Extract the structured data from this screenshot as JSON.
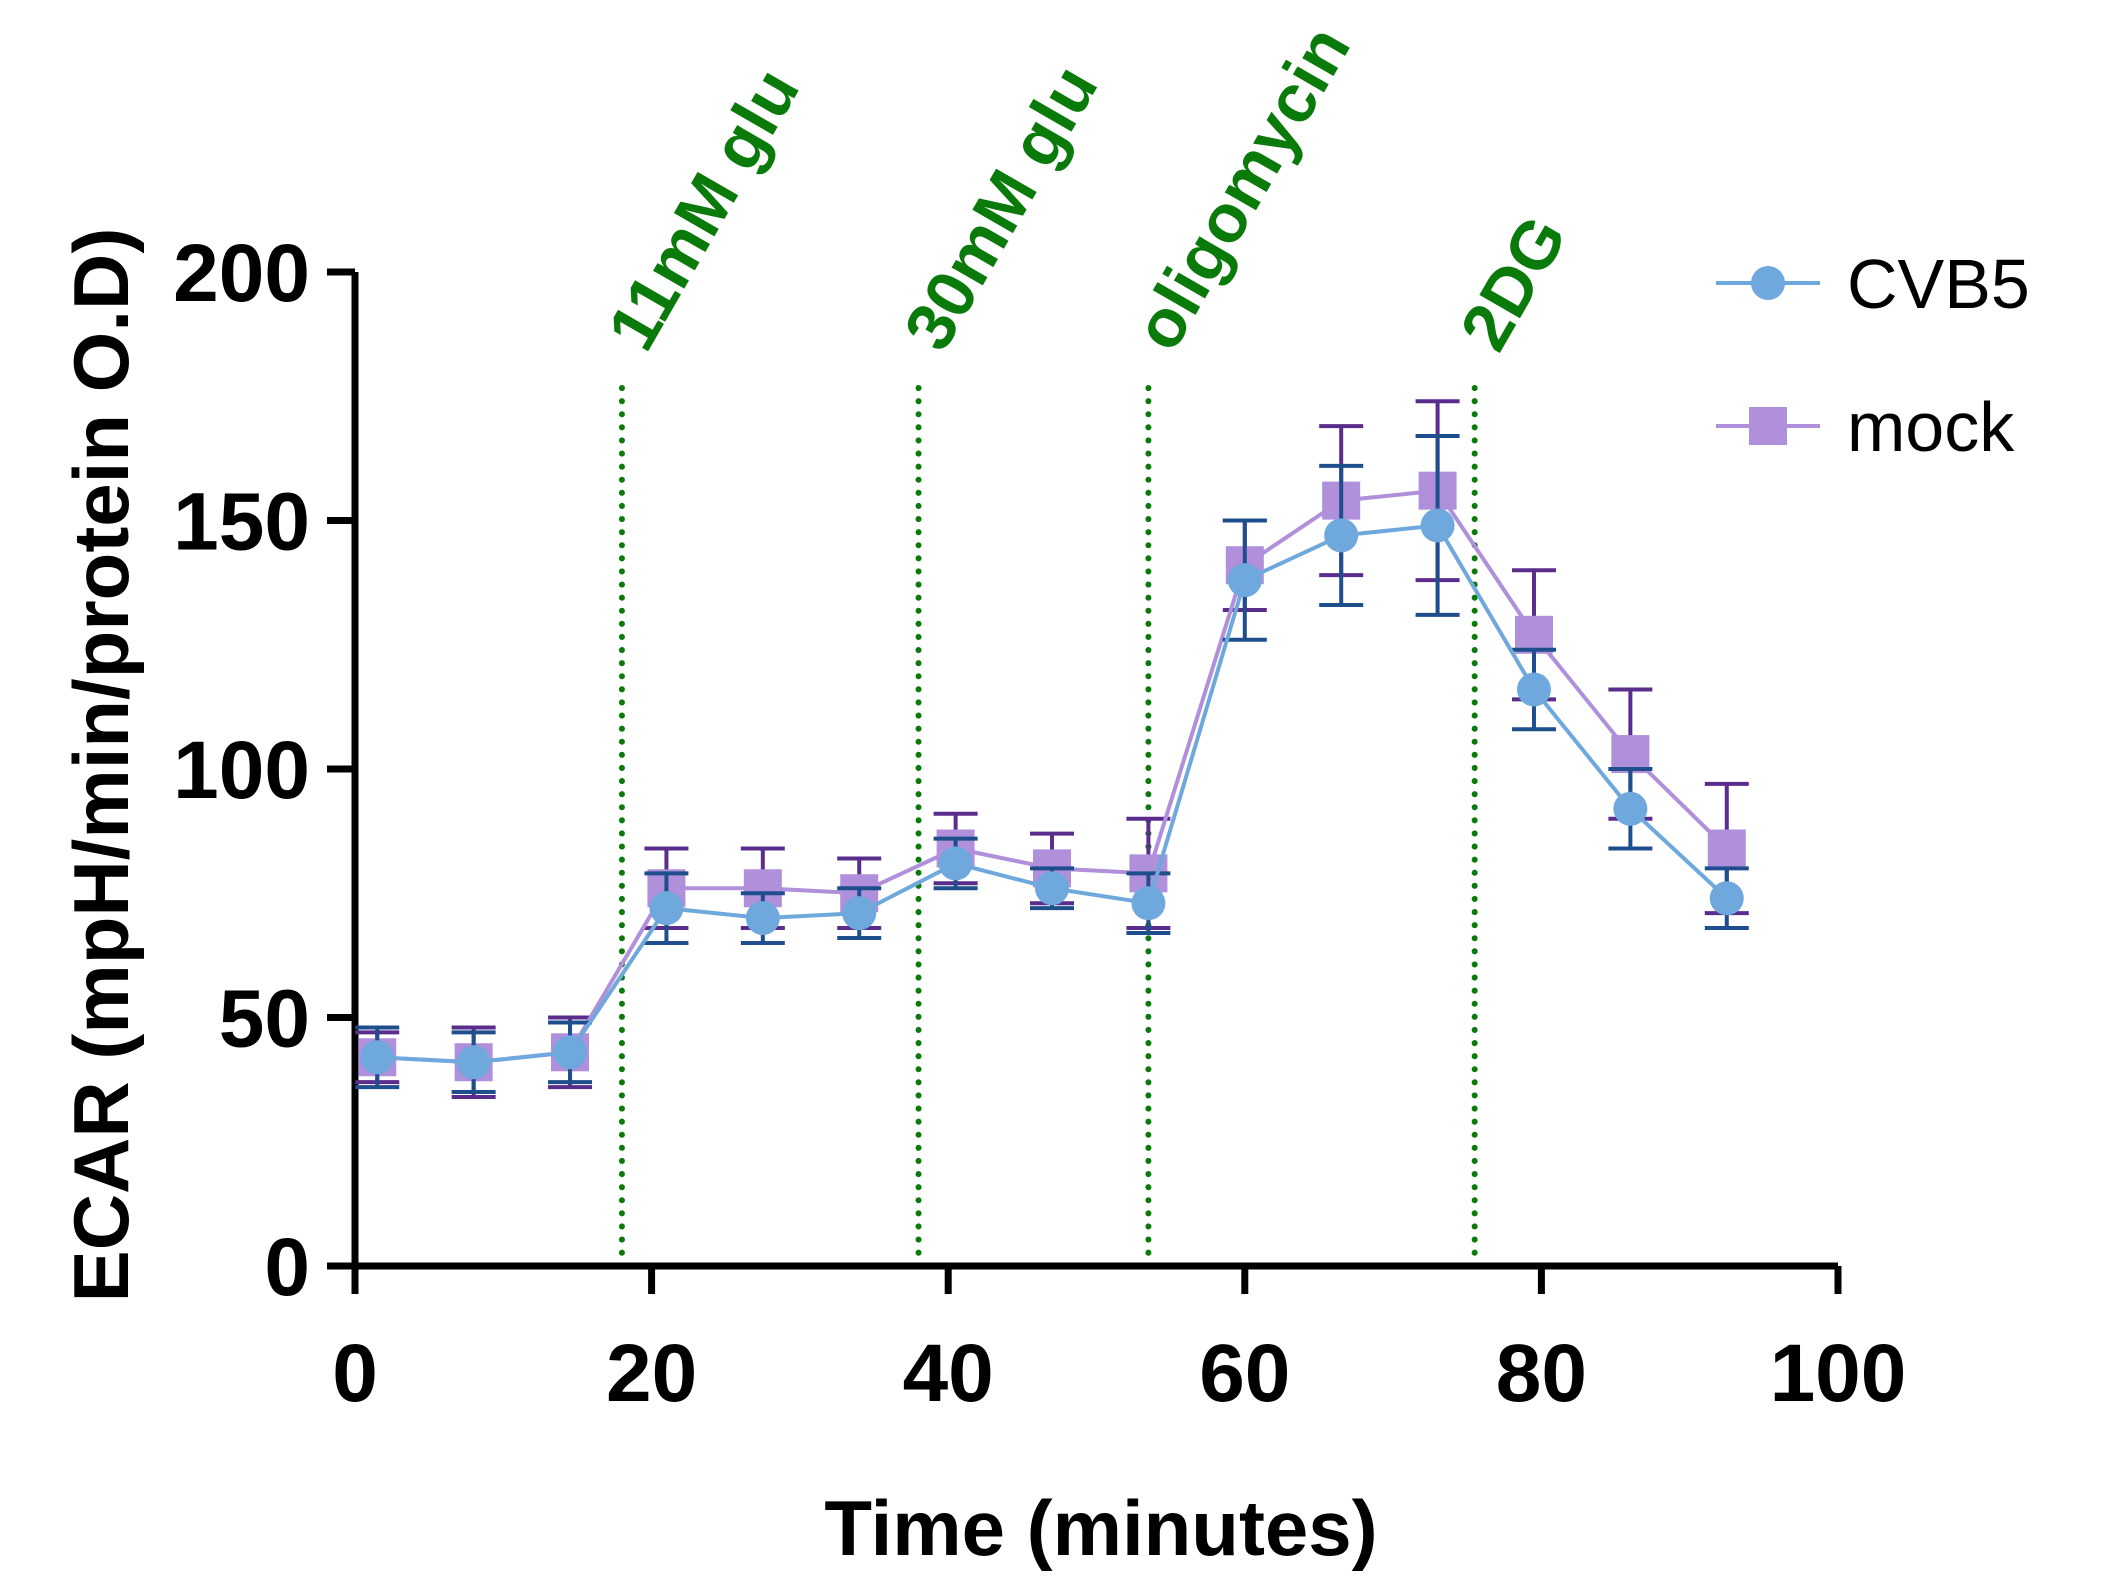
{
  "chart_data": {
    "type": "line",
    "title": "",
    "xlabel": "Time (minutes)",
    "ylabel": "ECAR (mpH/min/protein O.D)",
    "xlim": [
      0,
      100
    ],
    "ylim": [
      0,
      200
    ],
    "xticks": [
      0,
      20,
      40,
      60,
      80,
      100
    ],
    "yticks": [
      0,
      50,
      100,
      150,
      200
    ],
    "grid": false,
    "legend_position": "top-right",
    "series": [
      {
        "name": "CVB5",
        "marker": "circle",
        "color": "#6fa8dc",
        "error_color": "#1f4e8c",
        "x": [
          1.5,
          8,
          14.5,
          21,
          27.5,
          34,
          40.5,
          47,
          53.5,
          60,
          66.5,
          73,
          79.5,
          86,
          92.5
        ],
        "y": [
          42,
          41,
          43,
          72,
          70,
          71,
          81,
          76,
          73,
          138,
          147,
          149,
          116,
          92,
          74
        ],
        "error": [
          6,
          6,
          6,
          7,
          5,
          5,
          5,
          4,
          6,
          12,
          14,
          18,
          8,
          8,
          6
        ]
      },
      {
        "name": "mock",
        "marker": "square",
        "color": "#b08fdb",
        "error_color": "#5a2d8c",
        "x": [
          1.5,
          8,
          14.5,
          21,
          27.5,
          34,
          40.5,
          47,
          53.5,
          60,
          66.5,
          73,
          79.5,
          86,
          92.5
        ],
        "y": [
          42,
          41,
          43,
          76,
          76,
          75,
          84,
          80,
          79,
          141,
          154,
          156,
          127,
          103,
          84
        ],
        "error": [
          5,
          7,
          7,
          8,
          8,
          7,
          7,
          7,
          11,
          9,
          15,
          18,
          13,
          13,
          13
        ]
      }
    ],
    "annotations": [
      {
        "label": "11mM glu",
        "x": 18,
        "color": "#0a7a0a"
      },
      {
        "label": "30mM glu",
        "x": 38,
        "color": "#0a7a0a"
      },
      {
        "label": "oligomycin",
        "x": 53.5,
        "color": "#0a7a0a"
      },
      {
        "label": "2DG",
        "x": 75.5,
        "color": "#0a7a0a"
      }
    ]
  }
}
